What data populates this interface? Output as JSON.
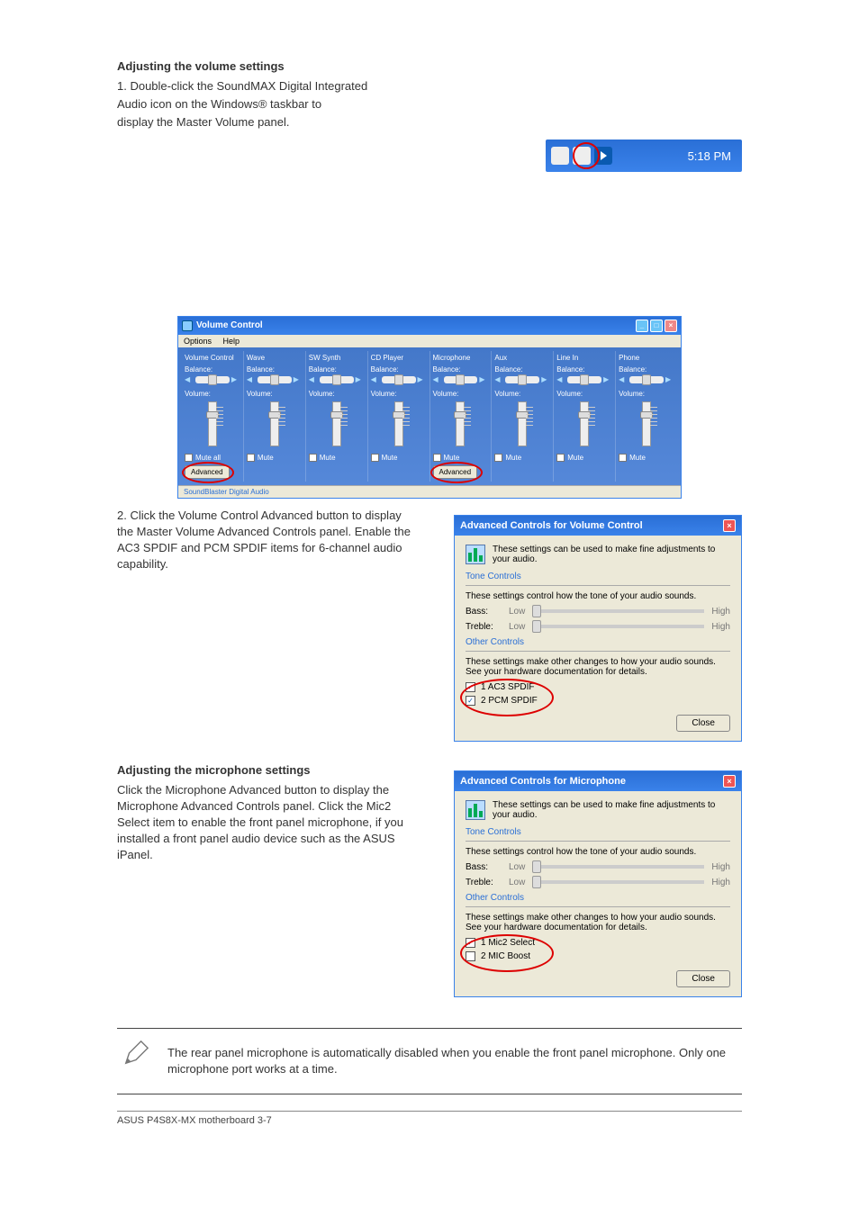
{
  "intro": {
    "bold_line": "Adjusting the volume settings",
    "line1": "1.   Double-click the SoundMAX Digital Integrated",
    "line2": "      Audio icon on the Windows® taskbar to",
    "line3": "      display the Master Volume panel."
  },
  "tray": {
    "time": "5:18 PM",
    "icons": {
      "globe": "globe-icon",
      "speaker": "speaker-icon",
      "play": "play-icon"
    }
  },
  "vc_window": {
    "title": "Volume Control",
    "menu": {
      "options": "Options",
      "help": "Help"
    },
    "advanced_label": "Advanced",
    "mute_label": "Mute",
    "mute_all_label": "Mute all",
    "balance_label": "Balance:",
    "volume_label": "Volume:",
    "status": "SoundBlaster Digital Audio",
    "channels": [
      {
        "name": "Volume Control",
        "has_advanced": true,
        "mute_label_override": "Mute all"
      },
      {
        "name": "Wave"
      },
      {
        "name": "SW Synth"
      },
      {
        "name": "CD Player"
      },
      {
        "name": "Microphone",
        "has_advanced": true
      },
      {
        "name": "Aux"
      },
      {
        "name": "Line In"
      },
      {
        "name": "Phone"
      }
    ]
  },
  "instruction_2": "2.   Click the Volume Control Advanced button to display the Master Volume Advanced Controls panel. Enable the AC3 SPDIF and PCM SPDIF items for 6-channel audio capability.",
  "adv1": {
    "title": "Advanced Controls for Volume Control",
    "head_text": "These settings can be used to make fine adjustments to your audio.",
    "tone_label": "Tone Controls",
    "tone_desc": "These settings control how the tone of your audio sounds.",
    "bass": "Bass:",
    "treble": "Treble:",
    "low": "Low",
    "high": "High",
    "other_label": "Other Controls",
    "other_desc": "These settings make other changes to how your audio sounds.  See your hardware documentation for details.",
    "cb1": "1  AC3 SPDIF",
    "cb2": "2  PCM SPDIF",
    "close": "Close"
  },
  "mic_heading": "Adjusting the microphone settings",
  "mic_instr": "      Click the Microphone Advanced button to display the Microphone Advanced Controls panel. Click the Mic2 Select item to enable the front panel microphone, if you installed a front panel audio device such as the ASUS iPanel.",
  "adv2": {
    "title": "Advanced Controls for Microphone",
    "head_text": "These settings can be used to make fine adjustments to your audio.",
    "tone_label": "Tone Controls",
    "tone_desc": "These settings control how the tone of your audio sounds.",
    "bass": "Bass:",
    "treble": "Treble:",
    "low": "Low",
    "high": "High",
    "other_label": "Other Controls",
    "other_desc": "These settings make other changes to how your audio sounds.  See your hardware documentation for details.",
    "cb1": "1  Mic2 Select",
    "cb2": "2  MIC Boost",
    "close": "Close"
  },
  "note": "The rear panel microphone is automatically disabled when you enable the front panel microphone. Only one microphone port works at a time.",
  "footer": "ASUS P4S8X-MX motherboard                                                                                    3-7"
}
